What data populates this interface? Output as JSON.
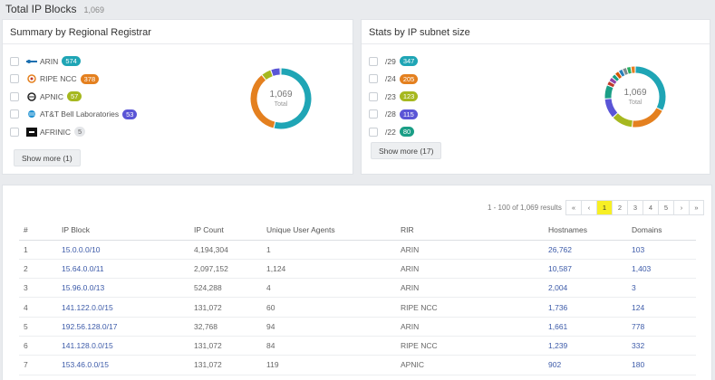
{
  "header": {
    "title": "Total IP Blocks",
    "count": "1,069"
  },
  "registrar": {
    "title": "Summary by Regional Registrar",
    "items": [
      {
        "label": "ARIN",
        "badge": "574",
        "color": "#1fa5b5",
        "icon": "arin-logo-icon"
      },
      {
        "label": "RIPE NCC",
        "badge": "378",
        "color": "#e4801f",
        "icon": "ripe-ncc-logo-icon"
      },
      {
        "label": "APNIC",
        "badge": "57",
        "color": "#a6b81f",
        "icon": "apnic-logo-icon"
      },
      {
        "label": "AT&T Bell Laboratories",
        "badge": "53",
        "color": "#5a55d6",
        "icon": "att-logo-icon"
      },
      {
        "label": "AFRINIC",
        "badge": "5",
        "color": "#e4e6e9",
        "icon": "afrinic-logo-icon"
      }
    ],
    "show_more": "Show more (1)",
    "donut": {
      "value": "1,069",
      "label": "Total"
    }
  },
  "subnet": {
    "title": "Stats by IP subnet size",
    "items": [
      {
        "label": "/29",
        "badge": "347",
        "color": "#1fa5b5"
      },
      {
        "label": "/24",
        "badge": "205",
        "color": "#e4801f"
      },
      {
        "label": "/23",
        "badge": "123",
        "color": "#a6b81f"
      },
      {
        "label": "/28",
        "badge": "115",
        "color": "#5a55d6"
      },
      {
        "label": "/22",
        "badge": "80",
        "color": "#1a9e86"
      }
    ],
    "show_more": "Show more (17)",
    "donut": {
      "value": "1,069",
      "label": "Total"
    }
  },
  "results": {
    "info": "1 - 100 of 1,069 results",
    "pager": [
      "«",
      "‹",
      "1",
      "2",
      "3",
      "4",
      "5",
      "›",
      "»"
    ],
    "active_page": "1"
  },
  "table": {
    "columns": [
      "#",
      "IP Block",
      "IP Count",
      "Unique User Agents",
      "RIR",
      "Hostnames",
      "Domains"
    ],
    "rows": [
      [
        "1",
        "15.0.0.0/10",
        "4,194,304",
        "1",
        "ARIN",
        "26,762",
        "103"
      ],
      [
        "2",
        "15.64.0.0/11",
        "2,097,152",
        "1,124",
        "ARIN",
        "10,587",
        "1,403"
      ],
      [
        "3",
        "15.96.0.0/13",
        "524,288",
        "4",
        "ARIN",
        "2,004",
        "3"
      ],
      [
        "4",
        "141.122.0.0/15",
        "131,072",
        "60",
        "RIPE NCC",
        "1,736",
        "124"
      ],
      [
        "5",
        "192.56.128.0/17",
        "32,768",
        "94",
        "ARIN",
        "1,661",
        "778"
      ],
      [
        "6",
        "141.128.0.0/15",
        "131,072",
        "84",
        "RIPE NCC",
        "1,239",
        "332"
      ],
      [
        "7",
        "153.46.0.0/15",
        "131,072",
        "119",
        "APNIC",
        "902",
        "180"
      ]
    ]
  }
}
